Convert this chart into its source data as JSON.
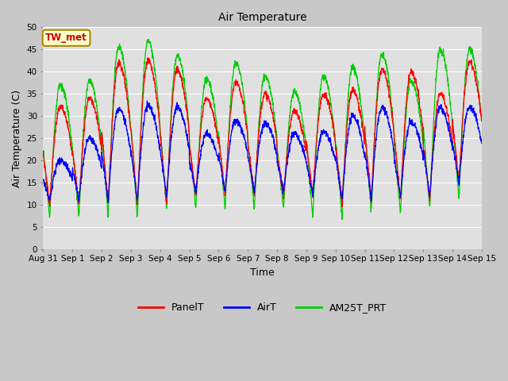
{
  "title": "Air Temperature",
  "xlabel": "Time",
  "ylabel": "Air Temperature (C)",
  "ylim": [
    0,
    50
  ],
  "yticks": [
    0,
    5,
    10,
    15,
    20,
    25,
    30,
    35,
    40,
    45,
    50
  ],
  "fig_bg_color": "#c8c8c8",
  "plot_bg_color": "#e0e0e0",
  "grid_color": "#ffffff",
  "annotation_text": "TW_met",
  "annotation_bg": "#ffffcc",
  "annotation_border": "#aa8800",
  "annotation_text_color": "#cc0000",
  "line_colors": {
    "PanelT": "#ff0000",
    "AirT": "#0000ff",
    "AM25T_PRT": "#00cc00"
  },
  "legend_labels": [
    "PanelT",
    "AirT",
    "AM25T_PRT"
  ],
  "num_days": 15,
  "xtick_labels": [
    "Aug 31",
    "Sep 1",
    "Sep 2",
    "Sep 3",
    "Sep 4",
    "Sep 5",
    "Sep 6",
    "Sep 7",
    "Sep 8",
    "Sep 9",
    "Sep 10",
    "Sep 11",
    "Sep 12",
    "Sep 13",
    "Sep 14",
    "Sep 15"
  ],
  "panel_peaks": [
    32,
    34,
    42,
    42.5,
    40.5,
    34,
    37.5,
    35,
    31,
    35,
    36,
    40.5,
    40,
    35,
    42
  ],
  "air_peaks": [
    20,
    25,
    31.5,
    32.5,
    32,
    26,
    29,
    28.5,
    26,
    26.5,
    30,
    32,
    28.5,
    32,
    32
  ],
  "green_peaks": [
    37,
    38,
    45.5,
    47,
    43.5,
    38.5,
    42,
    39,
    35.5,
    39,
    41,
    44,
    38,
    45,
    45
  ],
  "panel_mins": [
    10,
    10,
    10,
    10,
    10,
    12,
    12,
    12,
    12,
    12,
    10,
    11,
    11,
    11,
    15
  ],
  "air_mins": [
    11,
    11,
    11,
    11,
    12,
    13,
    13,
    13,
    13,
    12,
    11,
    11,
    12,
    12,
    15
  ],
  "green_mins": [
    7,
    7,
    7,
    7,
    9,
    9,
    9,
    9,
    9,
    7,
    7,
    8,
    8,
    9,
    11
  ]
}
